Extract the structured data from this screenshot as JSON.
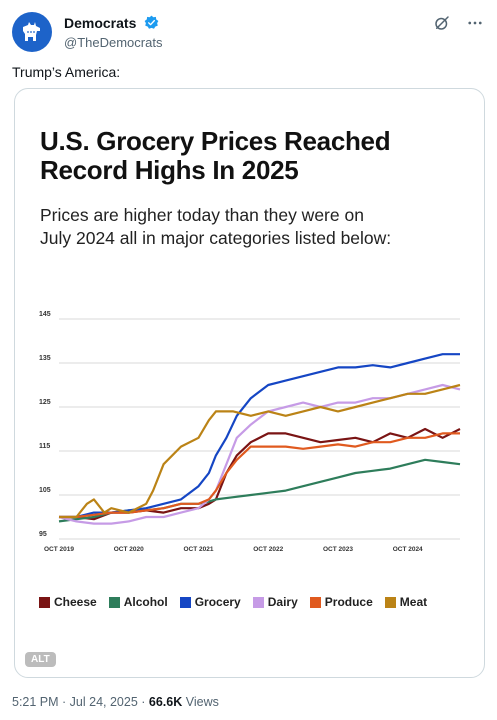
{
  "header": {
    "display_name": "Democrats",
    "handle": "@TheDemocrats",
    "icons": [
      "donkey-avatar",
      "verified-badge-icon",
      "grok-icon",
      "more-icon"
    ]
  },
  "tweet": {
    "text": "Trump’s America:"
  },
  "media": {
    "alt_label": "ALT"
  },
  "footer": {
    "time": "5:21 PM · Jul 24, 2025 · ",
    "views_count": "66.6K",
    "views_label": " Views"
  },
  "chart_data": {
    "type": "line",
    "title": "U.S. Grocery Prices Reached Record Highs In 2025",
    "title_lines": [
      "U.S. Grocery Prices Reached",
      "Record Highs In 2025"
    ],
    "subtitle": "Prices are higher today than they were on July 2024 all in major categories listed below:",
    "subtitle_lines": [
      "Prices are higher today than they were on",
      "July 2024 all in major categories listed below:"
    ],
    "x_tick_labels": [
      "OCT 2019",
      "OCT 2020",
      "OCT 2021",
      "OCT 2022",
      "OCT 2023",
      "OCT 2024"
    ],
    "x_tick_years": [
      2019.75,
      2020.75,
      2021.75,
      2022.75,
      2023.75,
      2024.75
    ],
    "y_ticks": [
      95,
      105,
      115,
      125,
      135,
      145
    ],
    "ylim": [
      95,
      145
    ],
    "xlim": [
      2019.75,
      2025.5
    ],
    "grid": true,
    "legend_position": "bottom",
    "series": [
      {
        "name": "Cheese",
        "color": "#7a1414",
        "points": [
          [
            2019.75,
            100
          ],
          [
            2020.0,
            100
          ],
          [
            2020.25,
            99.5
          ],
          [
            2020.5,
            101
          ],
          [
            2020.75,
            101
          ],
          [
            2021.0,
            101.5
          ],
          [
            2021.25,
            101
          ],
          [
            2021.5,
            102
          ],
          [
            2021.75,
            102
          ],
          [
            2021.9,
            103
          ],
          [
            2022.0,
            104
          ],
          [
            2022.15,
            110
          ],
          [
            2022.3,
            114
          ],
          [
            2022.5,
            117
          ],
          [
            2022.75,
            119
          ],
          [
            2023.0,
            119
          ],
          [
            2023.25,
            118
          ],
          [
            2023.5,
            117
          ],
          [
            2023.75,
            117.5
          ],
          [
            2024.0,
            118
          ],
          [
            2024.25,
            117
          ],
          [
            2024.5,
            119
          ],
          [
            2024.75,
            118
          ],
          [
            2025.0,
            120
          ],
          [
            2025.25,
            118
          ],
          [
            2025.5,
            120
          ]
        ]
      },
      {
        "name": "Alcohol",
        "color": "#2e7d5b",
        "points": [
          [
            2019.75,
            99
          ],
          [
            2020.0,
            99.5
          ],
          [
            2020.25,
            100
          ],
          [
            2020.5,
            101
          ],
          [
            2020.75,
            101.5
          ],
          [
            2021.0,
            101.5
          ],
          [
            2021.25,
            102
          ],
          [
            2021.5,
            103
          ],
          [
            2021.75,
            103
          ],
          [
            2021.9,
            103.5
          ],
          [
            2022.0,
            104
          ],
          [
            2022.25,
            104.5
          ],
          [
            2022.5,
            105
          ],
          [
            2022.75,
            105.5
          ],
          [
            2023.0,
            106
          ],
          [
            2023.25,
            107
          ],
          [
            2023.5,
            108
          ],
          [
            2023.75,
            109
          ],
          [
            2024.0,
            110
          ],
          [
            2024.25,
            110.5
          ],
          [
            2024.5,
            111
          ],
          [
            2024.75,
            112
          ],
          [
            2025.0,
            113
          ],
          [
            2025.25,
            112.5
          ],
          [
            2025.5,
            112
          ]
        ]
      },
      {
        "name": "Grocery",
        "color": "#1546c4",
        "points": [
          [
            2019.75,
            100
          ],
          [
            2020.0,
            100
          ],
          [
            2020.25,
            101
          ],
          [
            2020.5,
            101
          ],
          [
            2020.75,
            101.5
          ],
          [
            2021.0,
            102
          ],
          [
            2021.25,
            103
          ],
          [
            2021.5,
            104
          ],
          [
            2021.75,
            107
          ],
          [
            2021.9,
            110
          ],
          [
            2022.0,
            114
          ],
          [
            2022.15,
            118
          ],
          [
            2022.3,
            123
          ],
          [
            2022.5,
            127
          ],
          [
            2022.75,
            130
          ],
          [
            2023.0,
            131
          ],
          [
            2023.25,
            132
          ],
          [
            2023.5,
            133
          ],
          [
            2023.75,
            134
          ],
          [
            2024.0,
            134
          ],
          [
            2024.25,
            134.5
          ],
          [
            2024.5,
            134
          ],
          [
            2024.75,
            135
          ],
          [
            2025.0,
            136
          ],
          [
            2025.25,
            137
          ],
          [
            2025.5,
            137
          ]
        ]
      },
      {
        "name": "Dairy",
        "color": "#c69be6",
        "points": [
          [
            2019.75,
            100
          ],
          [
            2020.0,
            99
          ],
          [
            2020.25,
            98.5
          ],
          [
            2020.5,
            98.5
          ],
          [
            2020.75,
            99
          ],
          [
            2021.0,
            100
          ],
          [
            2021.25,
            100
          ],
          [
            2021.5,
            101
          ],
          [
            2021.75,
            102
          ],
          [
            2021.9,
            104
          ],
          [
            2022.0,
            106
          ],
          [
            2022.15,
            112
          ],
          [
            2022.3,
            118
          ],
          [
            2022.5,
            121
          ],
          [
            2022.75,
            124
          ],
          [
            2023.0,
            125
          ],
          [
            2023.25,
            126
          ],
          [
            2023.5,
            125
          ],
          [
            2023.75,
            126
          ],
          [
            2024.0,
            126
          ],
          [
            2024.25,
            127
          ],
          [
            2024.5,
            127
          ],
          [
            2024.75,
            128
          ],
          [
            2025.0,
            129
          ],
          [
            2025.25,
            130
          ],
          [
            2025.5,
            129
          ]
        ]
      },
      {
        "name": "Produce",
        "color": "#e05a1f",
        "points": [
          [
            2019.75,
            100
          ],
          [
            2020.0,
            100
          ],
          [
            2020.25,
            100.5
          ],
          [
            2020.5,
            101
          ],
          [
            2020.75,
            101
          ],
          [
            2021.0,
            101.5
          ],
          [
            2021.25,
            102
          ],
          [
            2021.5,
            103
          ],
          [
            2021.75,
            103
          ],
          [
            2021.9,
            104
          ],
          [
            2022.0,
            106
          ],
          [
            2022.15,
            110
          ],
          [
            2022.3,
            113
          ],
          [
            2022.5,
            116
          ],
          [
            2022.75,
            116
          ],
          [
            2023.0,
            116
          ],
          [
            2023.25,
            115.5
          ],
          [
            2023.5,
            116
          ],
          [
            2023.75,
            116.5
          ],
          [
            2024.0,
            116
          ],
          [
            2024.25,
            117
          ],
          [
            2024.5,
            117
          ],
          [
            2024.75,
            118
          ],
          [
            2025.0,
            118
          ],
          [
            2025.25,
            119
          ],
          [
            2025.5,
            119
          ]
        ]
      },
      {
        "name": "Meat",
        "color": "#bb8316",
        "points": [
          [
            2019.75,
            100
          ],
          [
            2020.0,
            100
          ],
          [
            2020.15,
            103
          ],
          [
            2020.25,
            104
          ],
          [
            2020.4,
            101
          ],
          [
            2020.5,
            102
          ],
          [
            2020.75,
            101
          ],
          [
            2021.0,
            103
          ],
          [
            2021.1,
            106
          ],
          [
            2021.25,
            112
          ],
          [
            2021.5,
            116
          ],
          [
            2021.75,
            118
          ],
          [
            2021.9,
            122
          ],
          [
            2022.0,
            124
          ],
          [
            2022.25,
            124
          ],
          [
            2022.5,
            123
          ],
          [
            2022.75,
            124
          ],
          [
            2023.0,
            123
          ],
          [
            2023.25,
            124
          ],
          [
            2023.5,
            125
          ],
          [
            2023.75,
            124
          ],
          [
            2024.0,
            125
          ],
          [
            2024.25,
            126
          ],
          [
            2024.5,
            127
          ],
          [
            2024.75,
            128
          ],
          [
            2025.0,
            128
          ],
          [
            2025.25,
            129
          ],
          [
            2025.5,
            130
          ]
        ]
      }
    ]
  }
}
